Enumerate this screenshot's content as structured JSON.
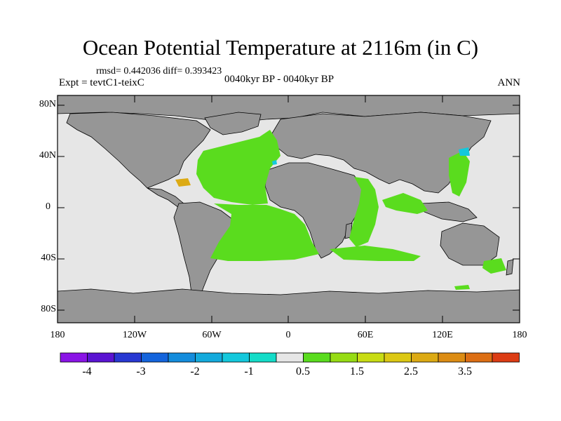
{
  "title": "Ocean Potential Temperature at 2116m (in C)",
  "stats": "rmsd= 0.442036 diff= 0.393423",
  "experiment": "Expt = tevtC1-teixC",
  "time_range": "0040kyr BP - 0040kyr BP",
  "season": "ANN",
  "lat_labels": [
    "80N",
    "40N",
    "0",
    "40S",
    "80S"
  ],
  "lon_labels": [
    "180",
    "120W",
    "60W",
    "0",
    "60E",
    "120E",
    "180"
  ],
  "colorbar": {
    "colors": [
      "#8a14e6",
      "#5a14d2",
      "#2838d2",
      "#1464dc",
      "#148cdc",
      "#14aadc",
      "#14c8dc",
      "#14dcc8",
      "#e6e6e6",
      "#5adc1e",
      "#96dc14",
      "#c8dc14",
      "#dcc814",
      "#dcaa14",
      "#dc8c14",
      "#dc6e14",
      "#dc3c14"
    ],
    "labels": [
      "-4",
      "-3",
      "-2",
      "-1",
      "0.5",
      "1.5",
      "2.5",
      "3.5"
    ]
  },
  "map_colors": {
    "land": "#969696",
    "ocean": "#e6e6e6",
    "anomaly_green": "#5adc1e",
    "anomaly_orange": "#dcaa14",
    "anomaly_cyan": "#14c8dc"
  }
}
